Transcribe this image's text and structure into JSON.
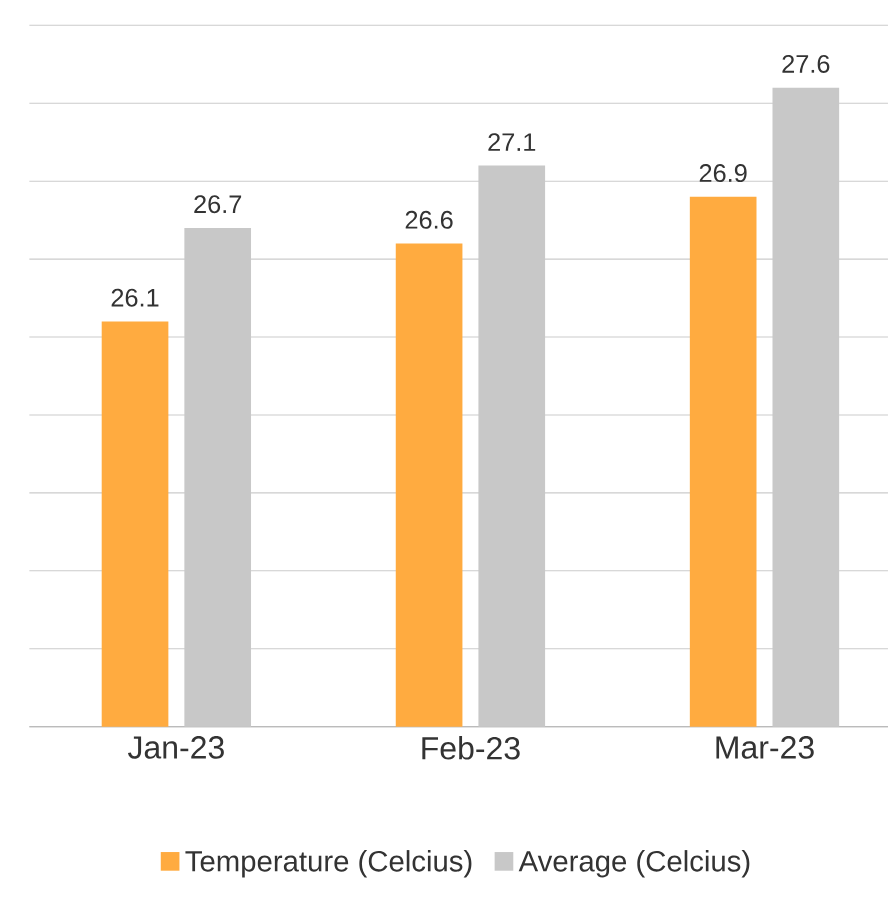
{
  "chart_data": {
    "type": "bar",
    "categories": [
      "Jan-23",
      "Feb-23",
      "Mar-23"
    ],
    "series": [
      {
        "name": "Temperature (Celcius)",
        "color": "#ffab40",
        "values": [
          26.1,
          26.6,
          26.9
        ]
      },
      {
        "name": "Average (Celcius)",
        "color": "#c8c8c8",
        "values": [
          26.7,
          27.1,
          27.6
        ]
      }
    ],
    "ylim": [
      23.5,
      28
    ],
    "yticks": [
      {
        "value": 23.5,
        "label": null
      },
      {
        "value": 24,
        "label": null
      },
      {
        "value": 24.5,
        "label": null
      },
      {
        "value": 25,
        "label": null
      },
      {
        "value": 25.5,
        "label": null
      },
      {
        "value": 26,
        "label": null
      },
      {
        "value": 26.5,
        "label": null
      },
      {
        "value": 27,
        "label": null
      },
      {
        "value": 27.5,
        "label": null
      },
      {
        "value": 28,
        "label": null
      }
    ],
    "tick_labels": "x",
    "grid": "y",
    "legend": "bottom",
    "data_labels": true
  }
}
